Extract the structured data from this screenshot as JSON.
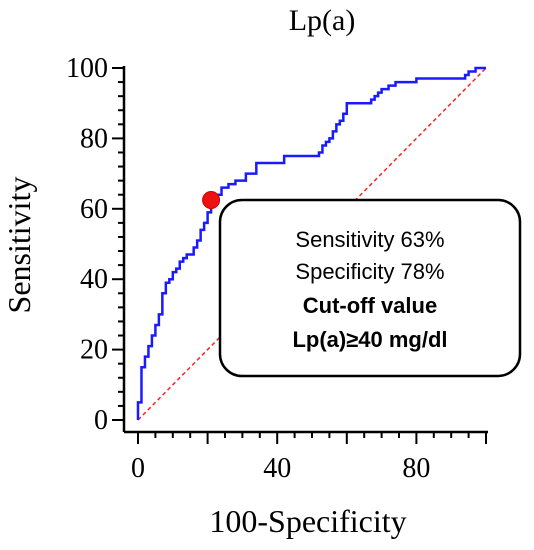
{
  "chart_data": {
    "type": "line",
    "title": "Lp(a)",
    "xlabel": "100-Specificity",
    "ylabel": "Sensitivity",
    "xlim": [
      0,
      100
    ],
    "ylim": [
      0,
      100
    ],
    "x_ticks": [
      "0",
      "40",
      "80"
    ],
    "x_tick_values": [
      0,
      40,
      80
    ],
    "y_ticks": [
      "0",
      "20",
      "40",
      "60",
      "80",
      "100"
    ],
    "y_tick_values": [
      0,
      20,
      40,
      60,
      80,
      100
    ],
    "grid": false,
    "series": [
      {
        "color": "#1a1aff",
        "x": [
          0,
          0,
          1,
          1,
          2,
          2,
          3,
          3,
          4,
          4,
          5,
          5,
          6,
          6,
          7,
          7,
          8,
          8,
          9,
          9,
          10,
          10,
          11,
          11,
          12,
          12,
          13,
          13,
          14,
          14,
          16,
          16,
          17,
          17,
          18,
          18,
          19,
          19,
          20,
          20,
          21,
          21,
          22,
          22,
          24,
          24,
          26,
          26,
          28,
          28,
          31,
          31,
          34,
          34,
          37,
          37,
          42,
          42,
          45,
          45,
          48,
          48,
          52,
          52,
          53,
          53,
          54,
          54,
          55,
          55,
          56,
          56,
          57,
          57,
          58,
          58,
          59,
          59,
          60,
          60,
          65,
          65,
          67,
          67,
          68,
          68,
          69,
          69,
          70,
          70,
          72,
          72,
          74,
          74,
          80,
          80,
          94,
          94,
          95,
          95,
          97,
          97,
          100
        ],
        "y": [
          0,
          5,
          5,
          15,
          15,
          18,
          18,
          21,
          21,
          24,
          24,
          27,
          27,
          30,
          30,
          36,
          36,
          39,
          39,
          40,
          40,
          42,
          42,
          43,
          43,
          45,
          45,
          46,
          46,
          47,
          47,
          49,
          49,
          51,
          51,
          54,
          54,
          56,
          56,
          59,
          59,
          61,
          61,
          64,
          64,
          66,
          66,
          67,
          67,
          68,
          68,
          70,
          70,
          73,
          73,
          73,
          73,
          75,
          75,
          75,
          75,
          75,
          75,
          76,
          76,
          78,
          78,
          79,
          79,
          80,
          80,
          82,
          82,
          84,
          84,
          85,
          85,
          87,
          87,
          90,
          90,
          90,
          90,
          91,
          91,
          92,
          92,
          93,
          93,
          94,
          94,
          95,
          95,
          96,
          96,
          97,
          97,
          98,
          98,
          99,
          99,
          100,
          100
        ]
      },
      {
        "color": "#ff2020",
        "style": "dashed",
        "x": [
          0,
          100
        ],
        "y": [
          0,
          100
        ]
      }
    ],
    "highlight_point": {
      "x": 21,
      "y": 62.5,
      "color": "#ee1111"
    },
    "annotation_lines": [
      "Sensitivity 63%",
      "Specificity 78%",
      "Cut-off value",
      "Lp(a)≥40 mg/dl"
    ]
  }
}
